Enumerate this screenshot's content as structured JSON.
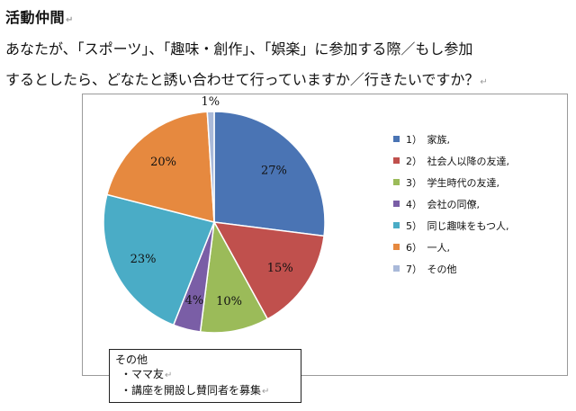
{
  "heading": "活動仲間",
  "question": {
    "line1": "あなたが、「スポーツ」、「趣味・創作」、「娯楽」に参加する際／もし参加",
    "line2": "するとしたら、どなたと誘い合わせて行っていますか／行きたいですか？"
  },
  "paragraph_mark": "↵",
  "chart_data": {
    "type": "pie",
    "title": "",
    "slices": [
      {
        "label": "1）　家族,",
        "value": 27,
        "value_label": "27%",
        "color": "#4a74b4"
      },
      {
        "label": "2）　社会人以降の友達,",
        "value": 15,
        "value_label": "15%",
        "color": "#c0504d"
      },
      {
        "label": "3）　学生時代の友達,",
        "value": 10,
        "value_label": "10%",
        "color": "#9bbb59"
      },
      {
        "label": "4）　会社の同僚,",
        "value": 4,
        "value_label": "4%",
        "color": "#7a5ea6"
      },
      {
        "label": "5）　同じ趣味をもつ人,",
        "value": 23,
        "value_label": "23%",
        "color": "#4aacc6"
      },
      {
        "label": "6）　一人,",
        "value": 20,
        "value_label": "20%",
        "color": "#e6893f"
      },
      {
        "label": "7）　その他",
        "value": 1,
        "value_label": "1%",
        "color": "#a9b9d9"
      }
    ],
    "legend_position": "right"
  },
  "note": {
    "title": "その他",
    "items": [
      "・ママ友",
      "・講座を開設し賛同者を募集"
    ]
  }
}
